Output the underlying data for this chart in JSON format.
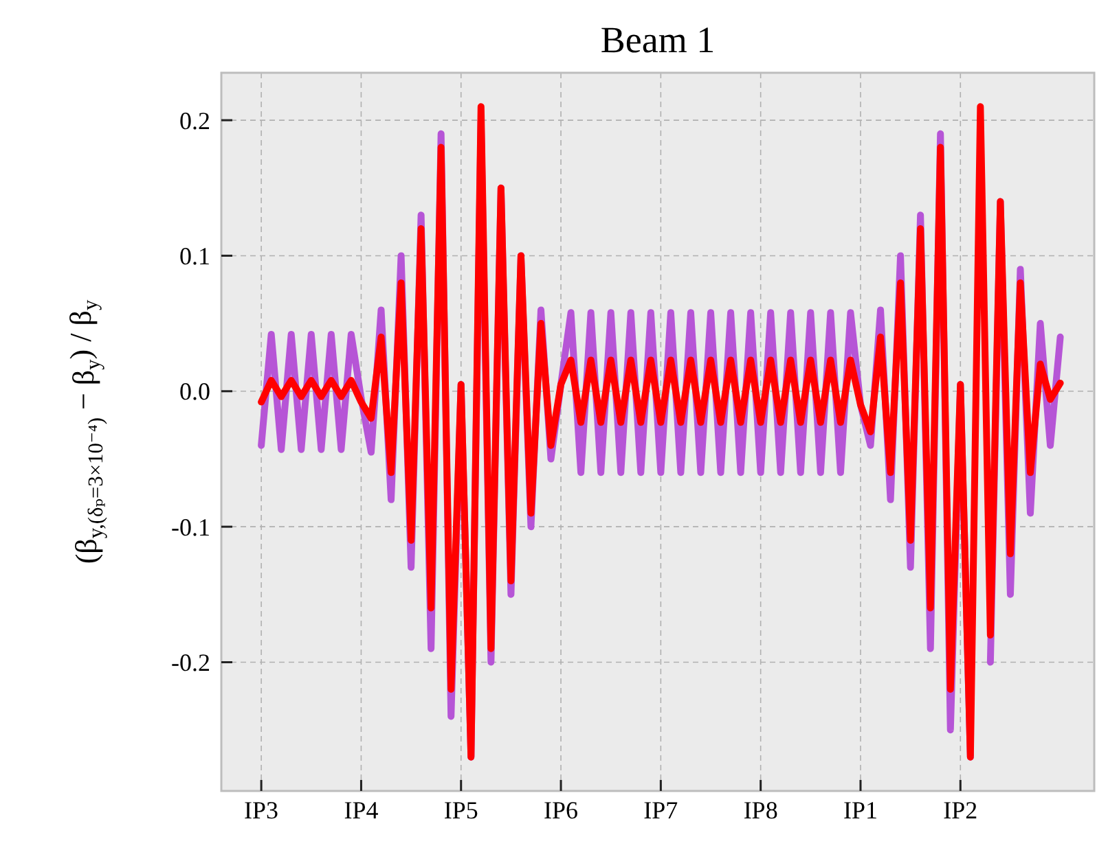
{
  "chart_data": {
    "type": "line",
    "title": "Beam 1",
    "ylabel": "(β$_{y,(δₚ=3×10⁻⁴)}$ − β$_{y}$) / β$_{y}$",
    "ylim": [
      -0.295,
      0.235
    ],
    "yticks": [
      -0.2,
      -0.1,
      {
        "value": 0,
        "label": "0.0"
      },
      0.1,
      0.2
    ],
    "grid": true,
    "marker": "none",
    "line_style": "solid",
    "categories": [
      "IP3",
      null,
      null,
      null,
      null,
      null,
      null,
      null,
      null,
      null,
      "IP4",
      null,
      null,
      null,
      null,
      null,
      null,
      null,
      null,
      null,
      "IP5",
      null,
      null,
      null,
      null,
      null,
      null,
      null,
      null,
      null,
      "IP6",
      null,
      null,
      null,
      null,
      null,
      null,
      null,
      null,
      null,
      "IP7",
      null,
      null,
      null,
      null,
      null,
      null,
      null,
      null,
      null,
      "IP8",
      null,
      null,
      null,
      null,
      null,
      null,
      null,
      null,
      null,
      "IP1",
      null,
      null,
      null,
      null,
      null,
      null,
      null,
      null,
      null,
      "IP2",
      null,
      null,
      null,
      null,
      null,
      null,
      null,
      null,
      null,
      null
    ],
    "series": [
      {
        "color": "#b655d6",
        "values": [
          -0.04,
          0.042,
          -0.043,
          0.042,
          -0.043,
          0.042,
          -0.043,
          0.042,
          -0.043,
          0.042,
          -0.005,
          -0.045,
          0.06,
          -0.08,
          0.1,
          -0.13,
          0.13,
          -0.19,
          0.19,
          -0.24,
          0.005,
          -0.27,
          0.2,
          -0.2,
          0.15,
          -0.15,
          0.1,
          -0.1,
          0.06,
          -0.05,
          0.005,
          0.058,
          -0.06,
          0.058,
          -0.06,
          0.058,
          -0.06,
          0.058,
          -0.06,
          0.058,
          -0.06,
          0.058,
          -0.06,
          0.058,
          -0.06,
          0.058,
          -0.06,
          0.058,
          -0.06,
          0.058,
          -0.06,
          0.058,
          -0.06,
          0.058,
          -0.06,
          0.058,
          -0.06,
          0.058,
          -0.06,
          0.058,
          -0.01,
          -0.04,
          0.06,
          -0.08,
          0.1,
          -0.13,
          0.13,
          -0.19,
          0.19,
          -0.25,
          0.005,
          -0.27,
          null,
          -0.2,
          0.14,
          -0.15,
          0.09,
          -0.09,
          0.05,
          -0.04,
          0.04
        ]
      },
      {
        "color": "#ff0000",
        "values": [
          -0.008,
          0.008,
          -0.004,
          0.008,
          -0.004,
          0.008,
          -0.004,
          0.008,
          -0.004,
          0.008,
          -0.008,
          -0.02,
          0.04,
          -0.06,
          0.08,
          -0.11,
          0.12,
          -0.16,
          0.18,
          -0.22,
          0.005,
          -0.27,
          0.21,
          -0.19,
          0.15,
          -0.14,
          0.1,
          -0.09,
          0.05,
          -0.04,
          0.005,
          0.023,
          -0.023,
          0.023,
          -0.023,
          0.023,
          -0.023,
          0.023,
          -0.023,
          0.023,
          -0.023,
          0.023,
          -0.023,
          0.023,
          -0.023,
          0.023,
          -0.023,
          0.023,
          -0.023,
          0.023,
          -0.023,
          0.023,
          -0.023,
          0.023,
          -0.023,
          0.023,
          -0.023,
          0.023,
          -0.023,
          0.023,
          -0.01,
          -0.03,
          0.04,
          -0.06,
          0.08,
          -0.11,
          0.12,
          -0.16,
          0.18,
          -0.22,
          0.005,
          -0.27,
          0.21,
          -0.18,
          0.14,
          -0.12,
          0.08,
          -0.06,
          0.02,
          -0.006,
          0.006
        ]
      }
    ]
  }
}
